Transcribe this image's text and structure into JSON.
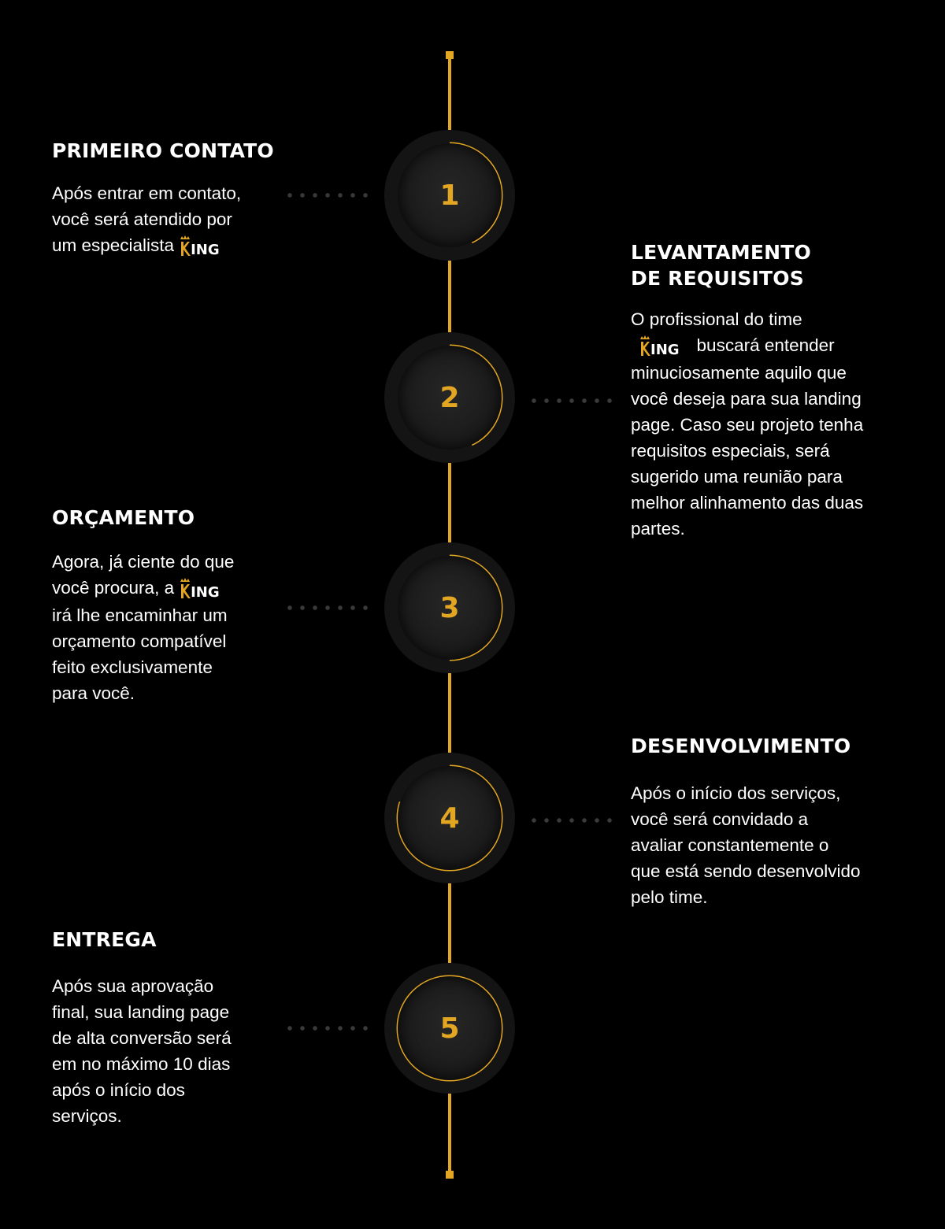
{
  "brand": {
    "logo_text": "ING"
  },
  "colors": {
    "accent": "#e3a623",
    "background": "#000000",
    "circle": "#141414"
  },
  "steps": [
    {
      "number": "1",
      "title": [
        "PRIMEIRO CONTATO"
      ],
      "text": [
        "Após entrar em contato,",
        "você será atendido por",
        "um especialista"
      ],
      "progress": 0.43
    },
    {
      "number": "2",
      "title": [
        "LEVANTAMENTO",
        "DE REQUISITOS"
      ],
      "text": [
        "O profissional do time",
        "buscará entender",
        "minuciosamente aquilo que",
        "você deseja para sua landing",
        "page. Caso seu projeto tenha",
        "requisitos especiais, será",
        "sugerido uma reunião para",
        "melhor alinhamento das duas",
        "partes."
      ],
      "progress": 0.43
    },
    {
      "number": "3",
      "title": [
        "ORÇAMENTO"
      ],
      "text": [
        "Agora, já ciente do que",
        "você procura, a",
        "irá lhe encaminhar um",
        "orçamento compatível",
        "feito exclusivamente",
        "para você."
      ],
      "progress": 0.5
    },
    {
      "number": "4",
      "title": [
        "DESENVOLVIMENTO"
      ],
      "text": [
        "Após o início dos serviços,",
        "você será convidado a",
        "avaliar constantemente o",
        "que está sendo desenvolvido",
        "pelo time."
      ],
      "progress": 0.8
    },
    {
      "number": "5",
      "title": [
        "ENTREGA"
      ],
      "text": [
        "Após sua aprovação",
        "final, sua landing page",
        "de alta conversão será",
        "em no máximo 10 dias",
        "após o início dos",
        "serviços."
      ],
      "progress": 1.0
    }
  ]
}
